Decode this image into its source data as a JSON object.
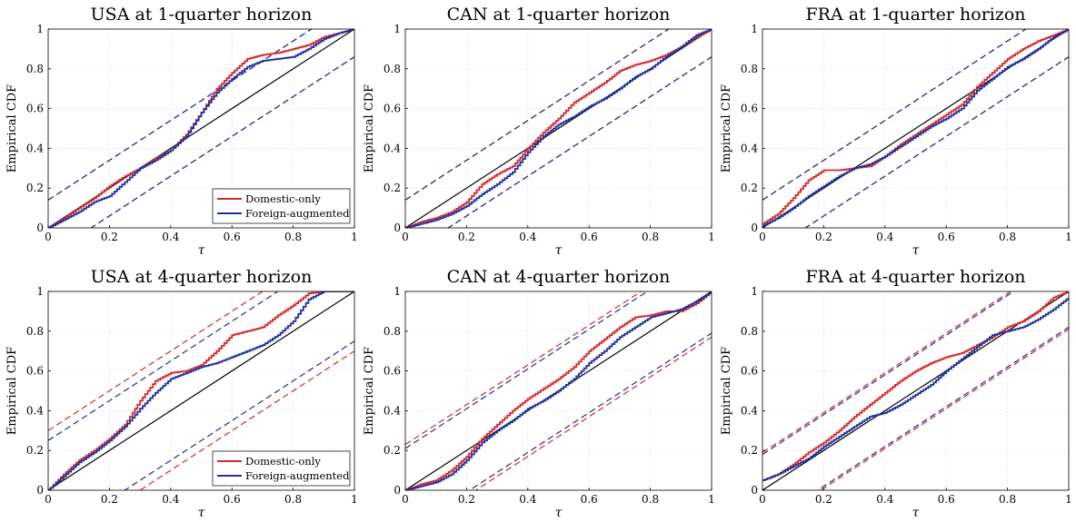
{
  "figure": {
    "xlabel": "τ",
    "ylabel": "Empirical CDF",
    "xticks": [
      "0",
      "0.2",
      "0.4",
      "0.6",
      "0.8",
      "1"
    ],
    "yticks": [
      "0",
      "0.2",
      "0.4",
      "0.6",
      "0.8",
      "1"
    ]
  },
  "legend": {
    "entries": [
      {
        "label": "Domestic-only",
        "color": "#d62728"
      },
      {
        "label": "Foreign-augmented",
        "color": "#1f2f9e"
      }
    ]
  },
  "colors": {
    "domestic": "#d62728",
    "foreign": "#1f2f9e",
    "diagonal": "#000000"
  },
  "chart_data": [
    {
      "type": "line",
      "title": "USA at 1-quarter horizon",
      "xlabel": "τ",
      "ylabel": "Empirical CDF",
      "xlim": [
        0,
        1
      ],
      "ylim": [
        0,
        1
      ],
      "grid": true,
      "legend": "bottom-right",
      "bands": {
        "domestic": 0.14,
        "foreign": 0.14
      },
      "series": [
        {
          "name": "Domestic-only",
          "x": [
            0,
            0.05,
            0.1,
            0.15,
            0.2,
            0.25,
            0.3,
            0.35,
            0.4,
            0.45,
            0.5,
            0.55,
            0.6,
            0.65,
            0.7,
            0.75,
            0.8,
            0.85,
            0.9,
            0.95,
            1
          ],
          "y": [
            0,
            0.05,
            0.1,
            0.15,
            0.21,
            0.26,
            0.3,
            0.35,
            0.39,
            0.47,
            0.58,
            0.7,
            0.78,
            0.85,
            0.87,
            0.88,
            0.9,
            0.92,
            0.96,
            0.98,
            1
          ]
        },
        {
          "name": "Foreign-augmented",
          "x": [
            0,
            0.05,
            0.1,
            0.15,
            0.2,
            0.25,
            0.3,
            0.35,
            0.4,
            0.45,
            0.5,
            0.55,
            0.6,
            0.65,
            0.7,
            0.75,
            0.8,
            0.85,
            0.9,
            0.95,
            1
          ],
          "y": [
            0,
            0.04,
            0.08,
            0.13,
            0.16,
            0.23,
            0.3,
            0.34,
            0.39,
            0.46,
            0.58,
            0.68,
            0.75,
            0.81,
            0.84,
            0.85,
            0.86,
            0.9,
            0.95,
            0.98,
            1
          ]
        }
      ]
    },
    {
      "type": "line",
      "title": "CAN at 1-quarter horizon",
      "xlabel": "τ",
      "ylabel": "Empirical CDF",
      "xlim": [
        0,
        1
      ],
      "ylim": [
        0,
        1
      ],
      "grid": true,
      "bands": {
        "domestic": 0.14,
        "foreign": 0.14
      },
      "series": [
        {
          "name": "Domestic-only",
          "x": [
            0,
            0.05,
            0.1,
            0.15,
            0.2,
            0.25,
            0.3,
            0.35,
            0.4,
            0.45,
            0.5,
            0.55,
            0.6,
            0.65,
            0.7,
            0.75,
            0.8,
            0.85,
            0.9,
            0.95,
            1
          ],
          "y": [
            0,
            0.03,
            0.05,
            0.08,
            0.13,
            0.22,
            0.27,
            0.31,
            0.4,
            0.48,
            0.55,
            0.63,
            0.68,
            0.73,
            0.79,
            0.82,
            0.84,
            0.87,
            0.91,
            0.96,
            1
          ]
        },
        {
          "name": "Foreign-augmented",
          "x": [
            0,
            0.05,
            0.1,
            0.15,
            0.2,
            0.25,
            0.3,
            0.35,
            0.4,
            0.45,
            0.5,
            0.55,
            0.6,
            0.65,
            0.7,
            0.75,
            0.8,
            0.85,
            0.9,
            0.95,
            1
          ],
          "y": [
            0,
            0.02,
            0.04,
            0.07,
            0.11,
            0.17,
            0.22,
            0.28,
            0.38,
            0.46,
            0.52,
            0.56,
            0.61,
            0.65,
            0.7,
            0.76,
            0.8,
            0.86,
            0.91,
            0.97,
            1
          ]
        }
      ]
    },
    {
      "type": "line",
      "title": "FRA at 1-quarter horizon",
      "xlabel": "τ",
      "ylabel": "Empirical CDF",
      "xlim": [
        0,
        1
      ],
      "ylim": [
        0,
        1
      ],
      "grid": true,
      "bands": {
        "domestic": 0.14,
        "foreign": 0.14
      },
      "series": [
        {
          "name": "Domestic-only",
          "x": [
            0,
            0.05,
            0.1,
            0.15,
            0.2,
            0.25,
            0.3,
            0.35,
            0.4,
            0.45,
            0.5,
            0.55,
            0.6,
            0.65,
            0.7,
            0.75,
            0.8,
            0.85,
            0.9,
            0.95,
            1
          ],
          "y": [
            0.02,
            0.07,
            0.15,
            0.24,
            0.29,
            0.29,
            0.3,
            0.31,
            0.36,
            0.42,
            0.47,
            0.52,
            0.57,
            0.62,
            0.71,
            0.78,
            0.85,
            0.9,
            0.94,
            0.97,
            1
          ]
        },
        {
          "name": "Foreign-augmented",
          "x": [
            0,
            0.05,
            0.1,
            0.15,
            0.2,
            0.25,
            0.3,
            0.35,
            0.4,
            0.45,
            0.5,
            0.55,
            0.6,
            0.65,
            0.7,
            0.75,
            0.8,
            0.85,
            0.9,
            0.95,
            1
          ],
          "y": [
            0.01,
            0.05,
            0.1,
            0.16,
            0.21,
            0.26,
            0.3,
            0.32,
            0.36,
            0.41,
            0.46,
            0.51,
            0.55,
            0.6,
            0.69,
            0.75,
            0.81,
            0.85,
            0.9,
            0.96,
            1
          ]
        }
      ]
    },
    {
      "type": "line",
      "title": "USA at 4-quarter horizon",
      "xlabel": "τ",
      "ylabel": "Empirical CDF",
      "xlim": [
        0,
        1
      ],
      "ylim": [
        0,
        1
      ],
      "grid": true,
      "legend": "bottom-right",
      "bands": {
        "domestic": 0.3,
        "foreign": 0.25
      },
      "series": [
        {
          "name": "Domestic-only",
          "x": [
            0,
            0.05,
            0.1,
            0.15,
            0.2,
            0.25,
            0.3,
            0.35,
            0.4,
            0.45,
            0.5,
            0.55,
            0.6,
            0.65,
            0.7,
            0.75,
            0.8,
            0.85,
            0.9,
            0.95,
            1
          ],
          "y": [
            0,
            0.08,
            0.15,
            0.2,
            0.26,
            0.33,
            0.45,
            0.55,
            0.59,
            0.6,
            0.63,
            0.7,
            0.78,
            0.8,
            0.82,
            0.88,
            0.93,
            0.99,
            1,
            1,
            1
          ]
        },
        {
          "name": "Foreign-augmented",
          "x": [
            0,
            0.05,
            0.1,
            0.15,
            0.2,
            0.25,
            0.3,
            0.35,
            0.4,
            0.45,
            0.5,
            0.55,
            0.6,
            0.65,
            0.7,
            0.75,
            0.8,
            0.85,
            0.9,
            0.95,
            1
          ],
          "y": [
            0,
            0.07,
            0.14,
            0.19,
            0.25,
            0.32,
            0.41,
            0.49,
            0.56,
            0.59,
            0.62,
            0.64,
            0.67,
            0.7,
            0.73,
            0.78,
            0.85,
            0.96,
            1,
            1,
            1
          ]
        }
      ]
    },
    {
      "type": "line",
      "title": "CAN at 4-quarter horizon",
      "xlabel": "τ",
      "ylabel": "Empirical CDF",
      "xlim": [
        0,
        1
      ],
      "ylim": [
        0,
        1
      ],
      "grid": true,
      "bands": {
        "domestic": 0.23,
        "foreign": 0.21
      },
      "series": [
        {
          "name": "Domestic-only",
          "x": [
            0,
            0.05,
            0.1,
            0.15,
            0.2,
            0.25,
            0.3,
            0.35,
            0.4,
            0.45,
            0.5,
            0.55,
            0.6,
            0.65,
            0.7,
            0.75,
            0.8,
            0.85,
            0.9,
            0.95,
            1
          ],
          "y": [
            0,
            0.03,
            0.05,
            0.1,
            0.17,
            0.26,
            0.33,
            0.4,
            0.46,
            0.51,
            0.56,
            0.62,
            0.7,
            0.76,
            0.82,
            0.87,
            0.88,
            0.9,
            0.9,
            0.94,
            1
          ]
        },
        {
          "name": "Foreign-augmented",
          "x": [
            0,
            0.05,
            0.1,
            0.15,
            0.2,
            0.25,
            0.3,
            0.35,
            0.4,
            0.45,
            0.5,
            0.55,
            0.6,
            0.65,
            0.7,
            0.75,
            0.8,
            0.85,
            0.9,
            0.95,
            1
          ],
          "y": [
            0,
            0.02,
            0.04,
            0.08,
            0.15,
            0.24,
            0.3,
            0.35,
            0.41,
            0.45,
            0.5,
            0.56,
            0.64,
            0.7,
            0.77,
            0.82,
            0.87,
            0.89,
            0.91,
            0.95,
            1
          ]
        }
      ]
    },
    {
      "type": "line",
      "title": "FRA at 4-quarter horizon",
      "xlabel": "τ",
      "ylabel": "Empirical CDF",
      "xlim": [
        0,
        1
      ],
      "ylim": [
        0,
        1
      ],
      "grid": true,
      "bands": {
        "domestic": 0.19,
        "foreign": 0.18
      },
      "series": [
        {
          "name": "Domestic-only",
          "x": [
            0,
            0.05,
            0.1,
            0.15,
            0.2,
            0.25,
            0.3,
            0.35,
            0.4,
            0.45,
            0.5,
            0.55,
            0.6,
            0.65,
            0.7,
            0.75,
            0.8,
            0.85,
            0.9,
            0.95,
            1
          ],
          "y": [
            0.05,
            0.08,
            0.13,
            0.19,
            0.24,
            0.3,
            0.37,
            0.43,
            0.49,
            0.55,
            0.6,
            0.64,
            0.67,
            0.69,
            0.73,
            0.77,
            0.82,
            0.85,
            0.9,
            0.97,
            1
          ]
        },
        {
          "name": "Foreign-augmented",
          "x": [
            0,
            0.05,
            0.1,
            0.15,
            0.2,
            0.25,
            0.3,
            0.35,
            0.4,
            0.45,
            0.5,
            0.55,
            0.6,
            0.65,
            0.7,
            0.75,
            0.8,
            0.85,
            0.9,
            0.95,
            1
          ],
          "y": [
            0.05,
            0.08,
            0.12,
            0.16,
            0.22,
            0.27,
            0.32,
            0.37,
            0.39,
            0.43,
            0.48,
            0.53,
            0.6,
            0.66,
            0.72,
            0.78,
            0.8,
            0.82,
            0.86,
            0.91,
            0.97
          ]
        }
      ]
    }
  ]
}
